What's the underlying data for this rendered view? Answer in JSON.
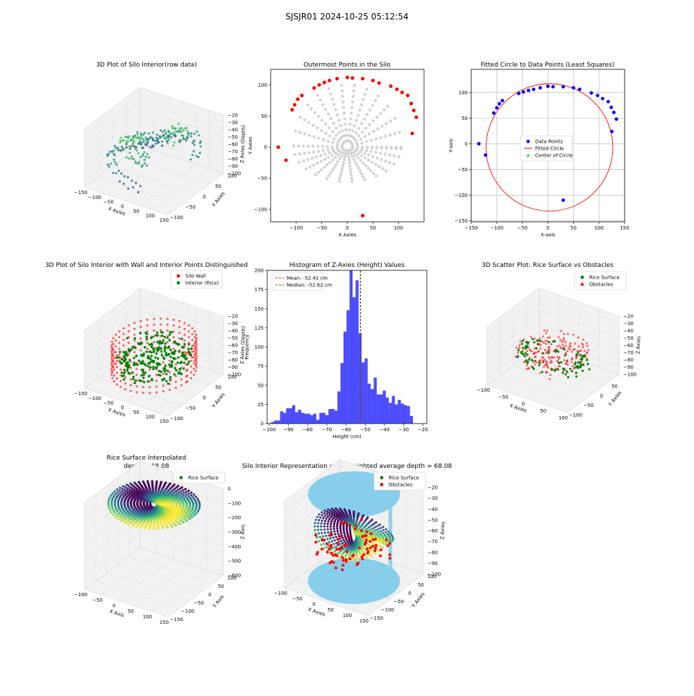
{
  "suptitle": "SJSJR01 2024-10-25 05:12:54",
  "colors": {
    "wall": "#ff0000",
    "rice": "#008000",
    "hist": "#0000ff",
    "points_gray": "#d3d3d3",
    "cylinder": "#87ceeb",
    "grid": "#b0b0b0"
  },
  "chart_data": [
    {
      "id": "p1",
      "type": "scatter",
      "projection": "3d",
      "title": "3D Plot of Silo Interior(row data)",
      "xlabel": "X Axies",
      "ylabel": "Y Axies",
      "zlabel": "Z Axies (Depth)",
      "xlim": [
        -150,
        150
      ],
      "ylim": [
        -100,
        100
      ],
      "zlim": [
        -100,
        -20
      ],
      "xticks": [
        -150,
        -100,
        -50,
        0,
        50,
        100,
        150
      ],
      "yticks": [
        -100,
        -50,
        0,
        50,
        100
      ],
      "zticks": [
        -20,
        -30,
        -40,
        -50,
        -60,
        -70,
        -80,
        -90,
        -100
      ],
      "colormap": "viridis"
    },
    {
      "id": "p2",
      "type": "scatter",
      "title": "Outermost Points in the Silo",
      "xlabel": "X Axies",
      "ylabel": "Y Axies",
      "xlim": [
        -150,
        150
      ],
      "ylim": [
        -120,
        125
      ],
      "xticks": [
        -100,
        -50,
        0,
        50,
        100
      ],
      "yticks": [
        -100,
        -50,
        0,
        50,
        100
      ],
      "outer_points": [
        [
          -135,
          0
        ],
        [
          -120,
          -21
        ],
        [
          -108,
          60
        ],
        [
          -103,
          68
        ],
        [
          -97,
          77
        ],
        [
          -89,
          83
        ],
        [
          -65,
          95
        ],
        [
          -55,
          100
        ],
        [
          -45,
          104
        ],
        [
          -35,
          107
        ],
        [
          -20,
          110
        ],
        [
          0,
          112
        ],
        [
          10,
          111
        ],
        [
          30,
          110
        ],
        [
          50,
          107
        ],
        [
          62,
          103
        ],
        [
          85,
          98
        ],
        [
          97,
          93
        ],
        [
          107,
          88
        ],
        [
          118,
          83
        ],
        [
          125,
          70
        ],
        [
          130,
          59
        ],
        [
          135,
          48
        ],
        [
          127,
          22
        ],
        [
          30,
          -110
        ]
      ]
    },
    {
      "id": "p3",
      "type": "scatter",
      "title": "Fitted Circle to Data Points (Least Squares)",
      "xlabel": "X-axis",
      "ylabel": "Y-axis",
      "xlim": [
        -150,
        150
      ],
      "ylim": [
        -152,
        145
      ],
      "xticks": [
        -150,
        -100,
        -50,
        0,
        50,
        100,
        150
      ],
      "yticks": [
        -150,
        -100,
        -50,
        0,
        50,
        100
      ],
      "grid": true,
      "legend": [
        "Data Points",
        "Fitted Circle",
        "Center of Circle"
      ],
      "points": [
        [
          -135,
          0
        ],
        [
          -122,
          -22
        ],
        [
          -106,
          60
        ],
        [
          -100,
          70
        ],
        [
          -95,
          78
        ],
        [
          -89,
          84
        ],
        [
          -57,
          98
        ],
        [
          -48,
          101
        ],
        [
          -38,
          104
        ],
        [
          -28,
          106
        ],
        [
          -15,
          109
        ],
        [
          0,
          112
        ],
        [
          10,
          111
        ],
        [
          30,
          111
        ],
        [
          50,
          109
        ],
        [
          62,
          106
        ],
        [
          85,
          99
        ],
        [
          97,
          94
        ],
        [
          107,
          88
        ],
        [
          118,
          82
        ],
        [
          124,
          71
        ],
        [
          129,
          61
        ],
        [
          134,
          48
        ],
        [
          125,
          24
        ],
        [
          30,
          -110
        ]
      ],
      "circle": {
        "center": [
          3,
          -7
        ],
        "radius": 124
      }
    },
    {
      "id": "p4",
      "type": "scatter",
      "projection": "3d",
      "title": "3D Plot of Silo Interior with Wall and Interior Points Distinguished",
      "xlabel": "X Axies",
      "ylabel": "Y Axies",
      "zlabel": "Z Axies (Depth)",
      "xlim": [
        -150,
        150
      ],
      "ylim": [
        -100,
        100
      ],
      "zlim": [
        -100,
        -20
      ],
      "xticks": [
        -150,
        -100,
        -50,
        0,
        50,
        100,
        150
      ],
      "yticks": [
        -100,
        -50,
        0,
        50,
        100
      ],
      "zticks": [
        -20,
        -30,
        -40,
        -50,
        -60,
        -70,
        -80,
        -90,
        -100
      ],
      "legend": [
        "Silo Wall",
        "Interior (Rice)"
      ]
    },
    {
      "id": "p5",
      "type": "bar",
      "title": "Histogram of Z-Axies (Height) Values",
      "xlabel": "Height (cm)",
      "ylabel": "Frequency",
      "xlim": [
        -101,
        -18
      ],
      "ylim": [
        0,
        200
      ],
      "xticks": [
        -100,
        -90,
        -80,
        -70,
        -60,
        -50,
        -40,
        -30,
        -20
      ],
      "yticks": [
        0,
        25,
        50,
        75,
        100,
        125,
        150,
        175,
        200
      ],
      "bin_start": -99.0,
      "bin_width": 1.57,
      "values": [
        2,
        4,
        4,
        16,
        14,
        20,
        20,
        24,
        15,
        18,
        14,
        13,
        13,
        11,
        13,
        5,
        14,
        14,
        11,
        19,
        19,
        17,
        42,
        79,
        120,
        148,
        200,
        165,
        187,
        118,
        80,
        85,
        52,
        45,
        60,
        38,
        38,
        43,
        34,
        27,
        36,
        25,
        31,
        26,
        24,
        23,
        10
      ],
      "lines": [
        {
          "x": -52.41,
          "label": "Mean: -52.41 cm",
          "color": "#ff0000"
        },
        {
          "x": -52.62,
          "label": "Median: -52.62 cm",
          "color": "#008000"
        }
      ]
    },
    {
      "id": "p6",
      "type": "scatter",
      "projection": "3d",
      "title": "3D Scatter Plot: Rice Surface vs Obstacles",
      "xlabel": "X Axies",
      "ylabel": "Y Axies",
      "zlabel": "Z Axies",
      "xlim": [
        -100,
        100
      ],
      "ylim": [
        -100,
        100
      ],
      "zlim": [
        -100,
        -20
      ],
      "xticks": [
        -100,
        -50,
        0,
        50,
        100
      ],
      "yticks": [
        -100,
        -50,
        0,
        50
      ],
      "zticks": [
        -20,
        -30,
        -40,
        -50,
        -60,
        -70,
        -80,
        -90,
        -100
      ],
      "legend": [
        "Rice Surface",
        "Obstacles"
      ]
    },
    {
      "id": "p7",
      "type": "surface",
      "projection": "3d",
      "title": "Rice Surface Interpolated",
      "subtitle": "depth = 68.08",
      "xlabel": "X Axis",
      "ylabel": "Y Axis",
      "zlabel": "Z Axis",
      "xlim": [
        -100,
        150
      ],
      "ylim": [
        -150,
        100
      ],
      "zlim": [
        -600,
        0
      ],
      "xticks": [
        -100,
        -50,
        0,
        50,
        100,
        150
      ],
      "yticks": [
        -150,
        -100,
        -50,
        0,
        50,
        100
      ],
      "zticks": [
        0,
        -100,
        -200,
        -300,
        -400,
        -500,
        -600
      ],
      "legend": [
        "Rice Surface"
      ]
    },
    {
      "id": "p8",
      "type": "surface",
      "projection": "3d",
      "title": "Silo Interior Representation using weighted average depth = 68.08",
      "xlabel": "X Axies",
      "ylabel": "Y Axies",
      "zlabel": "Z Axies",
      "xlim": [
        -100,
        150
      ],
      "ylim": [
        -150,
        100
      ],
      "zlim": [
        -100,
        -20
      ],
      "xticks": [
        -100,
        -50,
        0,
        50,
        100,
        150
      ],
      "yticks": [
        -150,
        -100,
        -50,
        0,
        50,
        100
      ],
      "zticks": [
        -20,
        -30,
        -40,
        -50,
        -60,
        -70,
        -80,
        -90,
        -100
      ],
      "legend": [
        "Rice Surface",
        "Obstacles"
      ]
    }
  ]
}
